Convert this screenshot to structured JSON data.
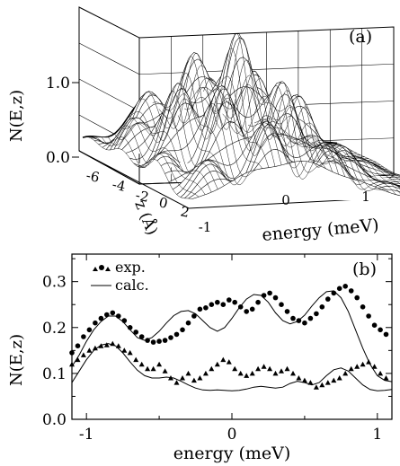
{
  "chart_data": [
    {
      "panel_label": "(a)",
      "type": "surface3d",
      "ylabel": "N(E,z)",
      "zlabel": "z (Å)",
      "xlabel": "energy (meV)",
      "zlim": [
        0.0,
        1.8
      ],
      "z_ticks": [
        "0.0",
        "1.0"
      ],
      "depth_ticks": [
        "-6",
        "-4",
        "-2",
        "0",
        "2"
      ],
      "energy_ticks": [
        "-1",
        "0",
        "1"
      ],
      "depth_range": [
        -6.5,
        3.0
      ],
      "energy_range": [
        -1.1,
        1.1
      ],
      "grid": true
    },
    {
      "panel_label": "(b)",
      "type": "scatter+line",
      "xlabel": "energy (meV)",
      "ylabel": "N(E,z)",
      "xlim": [
        -1.1,
        1.1
      ],
      "ylim": [
        0.0,
        0.36
      ],
      "x_ticks": [
        "-1",
        "0",
        "1"
      ],
      "y_ticks": [
        "0.0",
        "0.1",
        "0.2",
        "0.3"
      ],
      "legend": {
        "placement": "top-left",
        "exp_label": "exp.",
        "calc_label": "calc."
      },
      "series": [
        {
          "marker": "circle",
          "x": [
            -1.1,
            -1.06,
            -1.02,
            -0.98,
            -0.94,
            -0.9,
            -0.86,
            -0.82,
            -0.78,
            -0.74,
            -0.7,
            -0.66,
            -0.62,
            -0.58,
            -0.54,
            -0.5,
            -0.46,
            -0.42,
            -0.38,
            -0.34,
            -0.3,
            -0.26,
            -0.22,
            -0.18,
            -0.14,
            -0.1,
            -0.06,
            -0.02,
            0.02,
            0.06,
            0.1,
            0.14,
            0.18,
            0.22,
            0.26,
            0.3,
            0.34,
            0.38,
            0.42,
            0.46,
            0.5,
            0.54,
            0.58,
            0.62,
            0.66,
            0.7,
            0.74,
            0.78,
            0.82,
            0.86,
            0.9,
            0.94,
            0.98,
            1.02,
            1.06
          ],
          "y": [
            0.145,
            0.16,
            0.18,
            0.195,
            0.21,
            0.22,
            0.228,
            0.232,
            0.225,
            0.215,
            0.2,
            0.19,
            0.18,
            0.172,
            0.168,
            0.17,
            0.172,
            0.178,
            0.185,
            0.195,
            0.21,
            0.225,
            0.24,
            0.243,
            0.25,
            0.255,
            0.25,
            0.26,
            0.255,
            0.245,
            0.235,
            0.24,
            0.255,
            0.27,
            0.275,
            0.265,
            0.25,
            0.235,
            0.22,
            0.215,
            0.21,
            0.22,
            0.23,
            0.245,
            0.262,
            0.275,
            0.285,
            0.29,
            0.28,
            0.265,
            0.245,
            0.225,
            0.205,
            0.195,
            0.185
          ]
        },
        {
          "marker": "triangle",
          "x": [
            -1.1,
            -1.06,
            -1.02,
            -0.98,
            -0.94,
            -0.9,
            -0.86,
            -0.82,
            -0.78,
            -0.74,
            -0.7,
            -0.66,
            -0.62,
            -0.58,
            -0.54,
            -0.5,
            -0.46,
            -0.42,
            -0.38,
            -0.34,
            -0.3,
            -0.26,
            -0.22,
            -0.18,
            -0.14,
            -0.1,
            -0.06,
            -0.02,
            0.02,
            0.06,
            0.1,
            0.14,
            0.18,
            0.22,
            0.26,
            0.3,
            0.34,
            0.38,
            0.42,
            0.46,
            0.5,
            0.54,
            0.58,
            0.62,
            0.66,
            0.7,
            0.74,
            0.78,
            0.82,
            0.86,
            0.9,
            0.94,
            0.98,
            1.02,
            1.06
          ],
          "y": [
            0.12,
            0.13,
            0.14,
            0.15,
            0.155,
            0.16,
            0.162,
            0.165,
            0.16,
            0.15,
            0.145,
            0.13,
            0.12,
            0.11,
            0.11,
            0.12,
            0.105,
            0.09,
            0.08,
            0.09,
            0.1,
            0.085,
            0.09,
            0.1,
            0.11,
            0.12,
            0.13,
            0.125,
            0.11,
            0.1,
            0.095,
            0.1,
            0.11,
            0.115,
            0.11,
            0.1,
            0.105,
            0.11,
            0.1,
            0.09,
            0.085,
            0.08,
            0.07,
            0.075,
            0.08,
            0.085,
            0.09,
            0.1,
            0.11,
            0.115,
            0.12,
            0.125,
            0.115,
            0.1,
            0.09
          ]
        },
        {
          "line": "solid",
          "x": [
            -1.1,
            -1.05,
            -1.0,
            -0.95,
            -0.9,
            -0.85,
            -0.8,
            -0.75,
            -0.7,
            -0.65,
            -0.6,
            -0.55,
            -0.5,
            -0.45,
            -0.4,
            -0.35,
            -0.3,
            -0.25,
            -0.2,
            -0.15,
            -0.1,
            -0.05,
            0.0,
            0.05,
            0.1,
            0.15,
            0.2,
            0.25,
            0.3,
            0.35,
            0.4,
            0.45,
            0.5,
            0.55,
            0.6,
            0.65,
            0.7,
            0.75,
            0.8,
            0.85,
            0.9,
            0.95,
            1.0,
            1.05,
            1.1
          ],
          "y": [
            0.115,
            0.14,
            0.17,
            0.195,
            0.213,
            0.225,
            0.225,
            0.213,
            0.195,
            0.178,
            0.172,
            0.178,
            0.192,
            0.21,
            0.226,
            0.235,
            0.237,
            0.23,
            0.215,
            0.2,
            0.192,
            0.2,
            0.22,
            0.243,
            0.262,
            0.272,
            0.27,
            0.255,
            0.232,
            0.215,
            0.208,
            0.213,
            0.227,
            0.247,
            0.265,
            0.278,
            0.28,
            0.265,
            0.235,
            0.195,
            0.155,
            0.12,
            0.095,
            0.085,
            0.082
          ]
        },
        {
          "line": "solid",
          "x": [
            -1.1,
            -1.05,
            -1.0,
            -0.95,
            -0.9,
            -0.85,
            -0.8,
            -0.75,
            -0.7,
            -0.65,
            -0.6,
            -0.55,
            -0.5,
            -0.45,
            -0.4,
            -0.35,
            -0.3,
            -0.25,
            -0.2,
            -0.15,
            -0.1,
            -0.05,
            0.0,
            0.05,
            0.1,
            0.15,
            0.2,
            0.25,
            0.3,
            0.35,
            0.4,
            0.45,
            0.5,
            0.55,
            0.6,
            0.65,
            0.7,
            0.75,
            0.8,
            0.85,
            0.9,
            0.95,
            1.0,
            1.05,
            1.1
          ],
          "y": [
            0.08,
            0.105,
            0.13,
            0.15,
            0.162,
            0.165,
            0.16,
            0.145,
            0.125,
            0.107,
            0.095,
            0.09,
            0.09,
            0.092,
            0.09,
            0.083,
            0.075,
            0.068,
            0.064,
            0.063,
            0.064,
            0.063,
            0.062,
            0.063,
            0.066,
            0.07,
            0.072,
            0.07,
            0.068,
            0.07,
            0.078,
            0.083,
            0.08,
            0.075,
            0.08,
            0.095,
            0.108,
            0.112,
            0.105,
            0.09,
            0.075,
            0.065,
            0.062,
            0.063,
            0.065
          ]
        }
      ]
    }
  ]
}
